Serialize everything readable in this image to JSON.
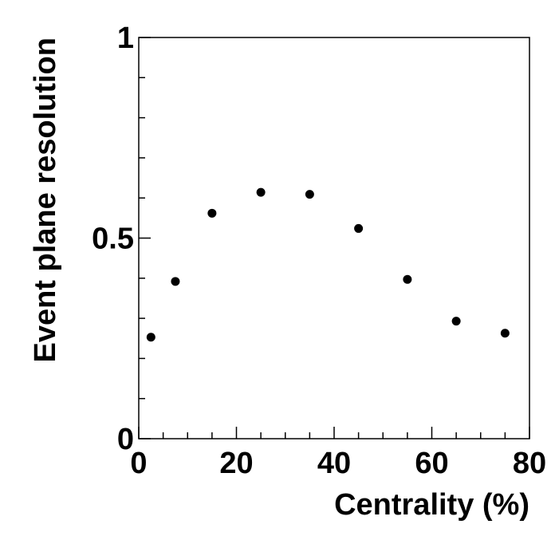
{
  "chart_data": {
    "type": "scatter",
    "xlabel": "Centrality (%)",
    "ylabel": "Event plane resolution",
    "xlim": [
      0,
      80
    ],
    "ylim": [
      0,
      1
    ],
    "x_ticks": [
      {
        "value": 0,
        "label": "0"
      },
      {
        "value": 20,
        "label": "20"
      },
      {
        "value": 40,
        "label": "40"
      },
      {
        "value": 60,
        "label": "60"
      },
      {
        "value": 80,
        "label": "80"
      }
    ],
    "y_ticks": [
      {
        "value": 0,
        "label": "0"
      },
      {
        "value": 0.5,
        "label": "0.5"
      },
      {
        "value": 1,
        "label": "1"
      }
    ],
    "grid": false,
    "marker_color": "#000000",
    "series": [
      {
        "x": [
          2.5,
          7.5,
          15,
          25,
          35,
          45,
          55,
          65,
          75
        ],
        "y": [
          0.253,
          0.392,
          0.562,
          0.614,
          0.609,
          0.524,
          0.397,
          0.293,
          0.263
        ]
      }
    ]
  }
}
